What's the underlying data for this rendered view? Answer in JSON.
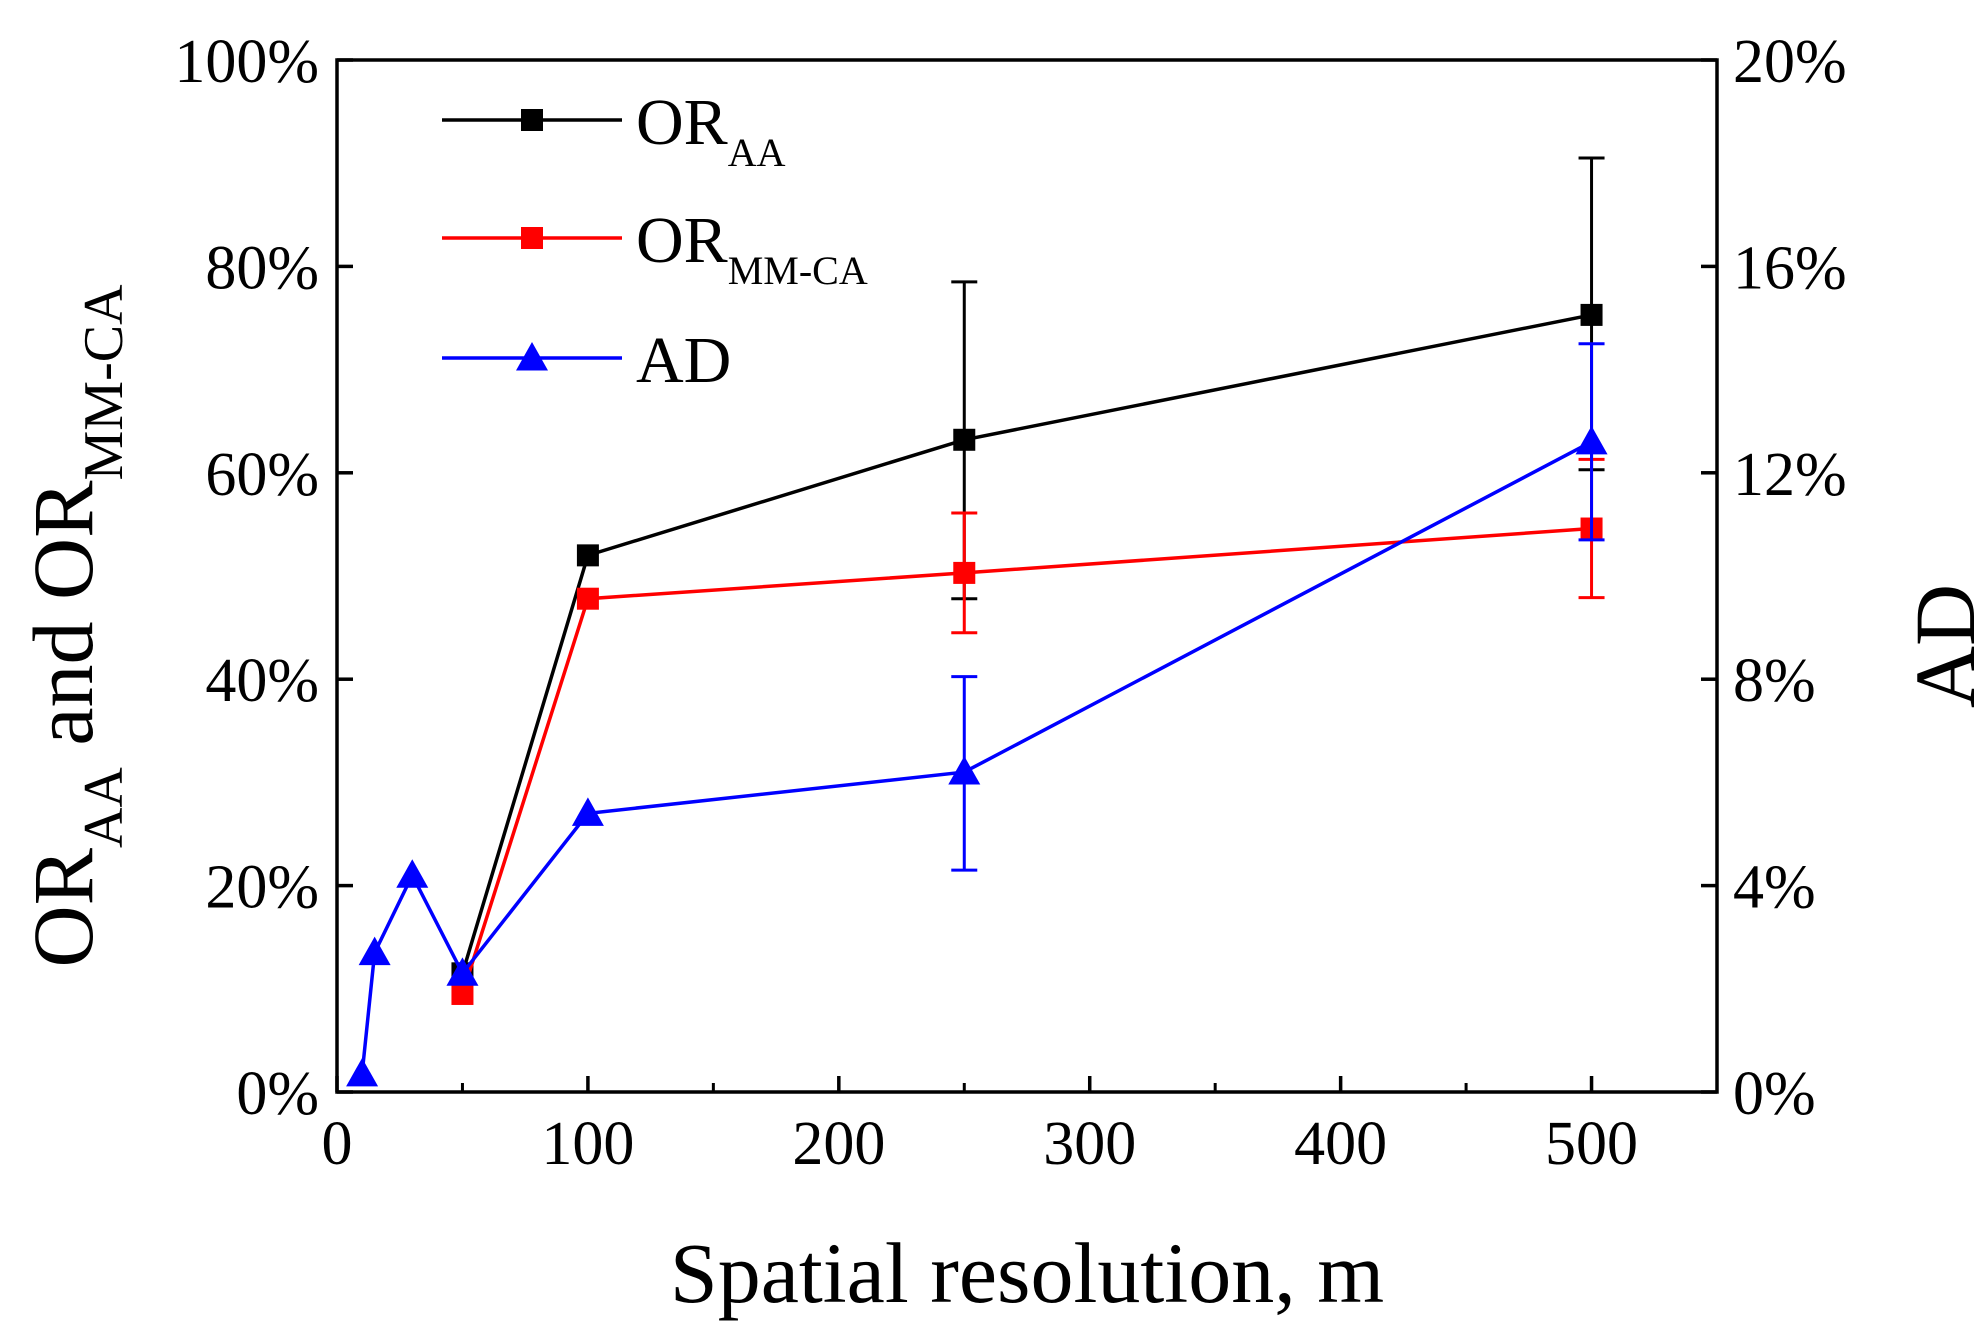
{
  "chart_data": {
    "type": "line",
    "title": "",
    "xlabel": "Spatial resolution, m",
    "ylabel_left": {
      "main1": "OR",
      "sub1": "AA",
      "mid": " and OR",
      "sub2": "MM-CA"
    },
    "ylabel_right": "AD",
    "xlim": [
      0,
      550
    ],
    "ylim_left": [
      0,
      100
    ],
    "ylim_right": [
      0,
      20
    ],
    "x_ticks": [
      0,
      100,
      200,
      300,
      400,
      500
    ],
    "x_tick_labels": [
      "0",
      "100",
      "200",
      "300",
      "400",
      "500"
    ],
    "y_left_ticks": [
      0,
      20,
      40,
      60,
      80,
      100
    ],
    "y_left_tick_labels": [
      "0%",
      "20%",
      "40%",
      "60%",
      "80%",
      "100%"
    ],
    "y_right_ticks": [
      0,
      4,
      8,
      12,
      16,
      20
    ],
    "y_right_tick_labels": [
      "0%",
      "4%",
      "8%",
      "12%",
      "16%",
      "20%"
    ],
    "legend_position": "top-left",
    "series": [
      {
        "name": "OR_AA",
        "label_main": "OR",
        "label_sub": "AA",
        "color": "#000000",
        "marker": "square",
        "axis": "left",
        "points": [
          {
            "x": 50,
            "y": 11.5,
            "err": null
          },
          {
            "x": 100,
            "y": 52,
            "err": null
          },
          {
            "x": 250,
            "y": 63.2,
            "err_low": 47.8,
            "err_high": 78.5
          },
          {
            "x": 500,
            "y": 75.3,
            "err_low": 60.3,
            "err_high": 90.5
          }
        ]
      },
      {
        "name": "OR_MM-CA",
        "label_main": "OR",
        "label_sub": "MM-CA",
        "color": "#ff0000",
        "marker": "square",
        "axis": "left",
        "points": [
          {
            "x": 50,
            "y": 9.5,
            "err": null
          },
          {
            "x": 100,
            "y": 47.8,
            "err": null
          },
          {
            "x": 250,
            "y": 50.3,
            "err_low": 44.5,
            "err_high": 56.1
          },
          {
            "x": 500,
            "y": 54.6,
            "err_low": 47.9,
            "err_high": 61.3
          }
        ]
      },
      {
        "name": "AD",
        "label_main": "AD",
        "label_sub": "",
        "color": "#0000ff",
        "marker": "triangle",
        "axis": "right",
        "points": [
          {
            "x": 10,
            "y": 0.35,
            "err": null
          },
          {
            "x": 15,
            "y": 2.7,
            "err": null
          },
          {
            "x": 30,
            "y": 4.2,
            "err": null
          },
          {
            "x": 50,
            "y": 2.3,
            "err": null
          },
          {
            "x": 100,
            "y": 5.4,
            "err": null
          },
          {
            "x": 250,
            "y": 6.2,
            "err_low": 4.3,
            "err_high": 8.05
          },
          {
            "x": 500,
            "y": 12.6,
            "err_low": 10.7,
            "err_high": 14.5
          }
        ]
      }
    ]
  }
}
